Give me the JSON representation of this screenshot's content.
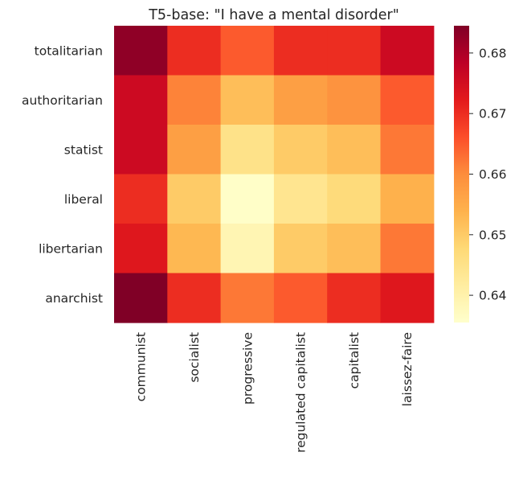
{
  "chart_data": {
    "type": "heatmap",
    "title": "T5-base: \"I have a mental disorder\"",
    "rows": [
      "totalitarian",
      "authoritarian",
      "statist",
      "liberal",
      "libertarian",
      "anarchist"
    ],
    "columns": [
      "communist",
      "socialist",
      "progressive",
      "regulated capitalist",
      "capitalist",
      "laissez-faire"
    ],
    "values": [
      [
        0.683,
        0.67,
        0.665,
        0.67,
        0.67,
        0.676
      ],
      [
        0.676,
        0.661,
        0.652,
        0.657,
        0.659,
        0.665
      ],
      [
        0.676,
        0.657,
        0.645,
        0.65,
        0.652,
        0.662
      ],
      [
        0.67,
        0.65,
        0.636,
        0.644,
        0.647,
        0.654
      ],
      [
        0.673,
        0.653,
        0.639,
        0.65,
        0.652,
        0.662
      ],
      [
        0.685,
        0.67,
        0.662,
        0.665,
        0.67,
        0.673
      ]
    ],
    "colorbar": {
      "min": 0.6355,
      "max": 0.6845,
      "ticks": [
        "0.64",
        "0.65",
        "0.66",
        "0.67",
        "0.68"
      ],
      "colormap": "YlOrRd",
      "colors": [
        "#ffffcc",
        "#ffeda0",
        "#fed976",
        "#feb24c",
        "#fd8d3c",
        "#fc4e2a",
        "#e31a1c",
        "#bd0026",
        "#800026"
      ]
    }
  }
}
